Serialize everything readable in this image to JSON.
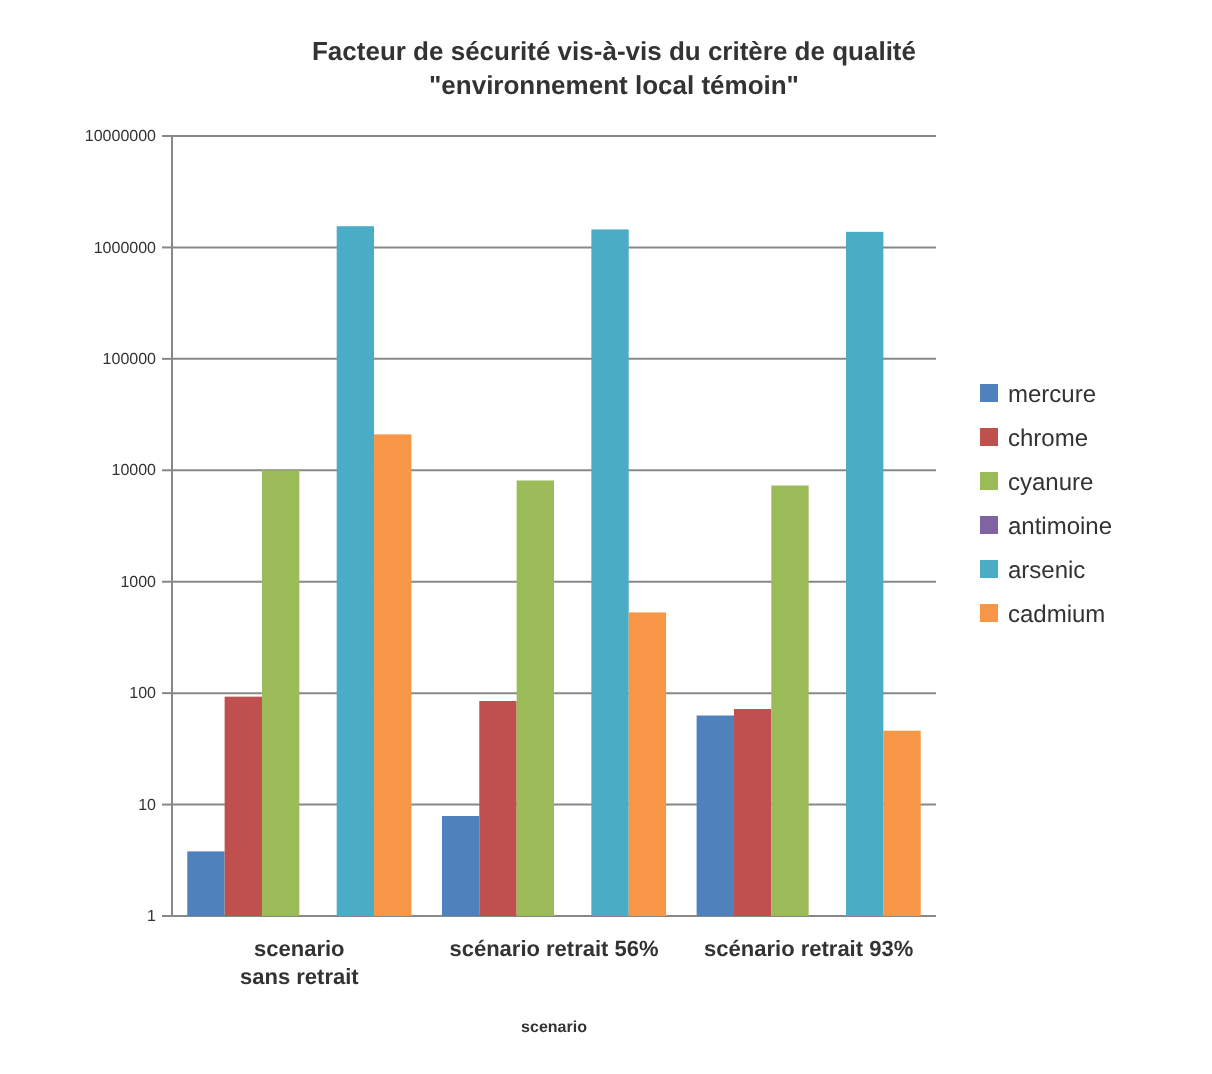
{
  "chart_data": {
    "type": "bar",
    "title": "Facteur de sécurité vis-à-vis du critère de qualité\n\"environnement local témoin\"",
    "xlabel": "scenario",
    "categories": [
      "scenario\nsans retrait",
      "scénario retrait 56%",
      "scénario retrait 93%"
    ],
    "log": true,
    "ylim": [
      1,
      10000000
    ],
    "yticks": [
      1,
      10,
      100,
      1000,
      10000,
      100000,
      1000000,
      10000000
    ],
    "grid": "y",
    "legend": "right",
    "series": [
      {
        "name": "mercure",
        "color": "#4f81bd",
        "values": [
          3.8,
          7.9,
          63
        ]
      },
      {
        "name": "chrome",
        "color": "#c0504d",
        "values": [
          93,
          85,
          72
        ]
      },
      {
        "name": "cyanure",
        "color": "#9bbb59",
        "values": [
          10000,
          8100,
          7300
        ]
      },
      {
        "name": "antimoine",
        "color": "#8064a2",
        "values": [
          null,
          null,
          null
        ]
      },
      {
        "name": "arsenic",
        "color": "#4bacc6",
        "values": [
          1550000,
          1450000,
          1380000
        ]
      },
      {
        "name": "cadmium",
        "color": "#f79646",
        "values": [
          21000,
          530,
          46
        ]
      }
    ]
  }
}
